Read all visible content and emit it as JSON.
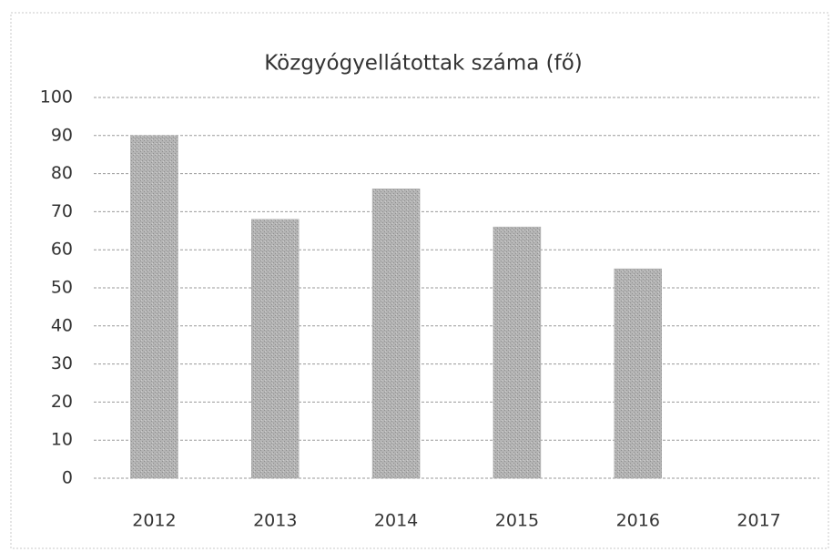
{
  "chart_data": {
    "type": "bar",
    "title": "Közgyógyellátottak száma (fő)",
    "categories": [
      "2012",
      "2013",
      "2014",
      "2015",
      "2016",
      "2017"
    ],
    "values": [
      90,
      68,
      76,
      66,
      55,
      null
    ],
    "color": "#a9a9a9",
    "ylim": [
      0,
      100
    ],
    "yticks": [
      0,
      10,
      20,
      30,
      40,
      50,
      60,
      70,
      80,
      90,
      100
    ],
    "grid": true
  }
}
